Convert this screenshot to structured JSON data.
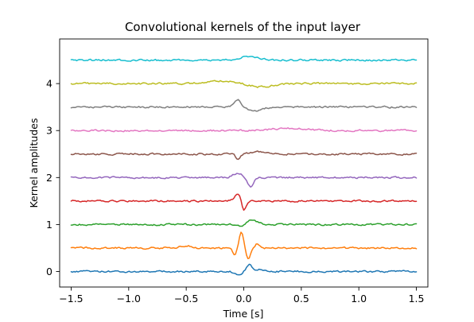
{
  "chart_data": {
    "type": "line",
    "title": "Convolutional kernels of the input layer",
    "xlabel": "Time [s]",
    "ylabel": "Kernel amplitudes",
    "xlim": [
      -1.6,
      1.6
    ],
    "ylim": [
      -0.33,
      4.95
    ],
    "x_ticks": [
      -1.5,
      -1.0,
      -0.5,
      0.0,
      0.5,
      1.0,
      1.5
    ],
    "x_tick_labels": [
      "−1.5",
      "−1.0",
      "−0.5",
      "0.0",
      "0.5",
      "1.0",
      "1.5"
    ],
    "y_ticks": [
      0,
      1,
      2,
      3,
      4
    ],
    "y_tick_labels": [
      "0",
      "1",
      "2",
      "3",
      "4"
    ],
    "grid": false,
    "legend": "none",
    "x_range": [
      -1.5,
      1.5
    ],
    "noise_amplitude": 0.022,
    "series": [
      {
        "offset": 0.0,
        "color": "#1f77b4",
        "features": [
          {
            "t": -0.05,
            "a": -0.08,
            "w": 0.03
          },
          {
            "t": 0.05,
            "a": 0.15,
            "w": 0.025
          },
          {
            "t": 0.15,
            "a": 0.05,
            "w": 0.03
          }
        ]
      },
      {
        "offset": 0.5,
        "color": "#ff7f0e",
        "features": [
          {
            "t": -0.08,
            "a": -0.15,
            "w": 0.015
          },
          {
            "t": -0.02,
            "a": 0.35,
            "w": 0.018
          },
          {
            "t": 0.04,
            "a": -0.22,
            "w": 0.02
          },
          {
            "t": 0.12,
            "a": 0.1,
            "w": 0.02
          },
          {
            "t": -0.5,
            "a": 0.05,
            "w": 0.05
          }
        ]
      },
      {
        "offset": 1.0,
        "color": "#2ca02c",
        "features": [
          {
            "t": 0.07,
            "a": 0.1,
            "w": 0.05
          },
          {
            "t": -0.02,
            "a": -0.05,
            "w": 0.03
          }
        ]
      },
      {
        "offset": 1.5,
        "color": "#d62728",
        "features": [
          {
            "t": -0.05,
            "a": 0.15,
            "w": 0.03
          },
          {
            "t": 0.0,
            "a": -0.22,
            "w": 0.018
          }
        ]
      },
      {
        "offset": 2.0,
        "color": "#9467bd",
        "features": [
          {
            "t": -0.05,
            "a": 0.1,
            "w": 0.04
          },
          {
            "t": 0.06,
            "a": -0.2,
            "w": 0.025
          }
        ]
      },
      {
        "offset": 2.5,
        "color": "#8c564b",
        "features": [
          {
            "t": -0.05,
            "a": -0.12,
            "w": 0.02
          },
          {
            "t": 0.12,
            "a": 0.05,
            "w": 0.06
          }
        ]
      },
      {
        "offset": 3.0,
        "color": "#e377c2",
        "features": [
          {
            "t": 0.4,
            "a": 0.05,
            "w": 0.15
          }
        ]
      },
      {
        "offset": 3.5,
        "color": "#7f7f7f",
        "features": [
          {
            "t": -0.05,
            "a": 0.15,
            "w": 0.03
          },
          {
            "t": 0.1,
            "a": -0.08,
            "w": 0.06
          }
        ]
      },
      {
        "offset": 4.0,
        "color": "#bcbd22",
        "features": [
          {
            "t": -0.2,
            "a": 0.06,
            "w": 0.12
          },
          {
            "t": 0.15,
            "a": -0.07,
            "w": 0.1
          }
        ]
      },
      {
        "offset": 4.5,
        "color": "#17becf",
        "features": [
          {
            "t": 0.05,
            "a": 0.08,
            "w": 0.08
          }
        ]
      }
    ]
  }
}
